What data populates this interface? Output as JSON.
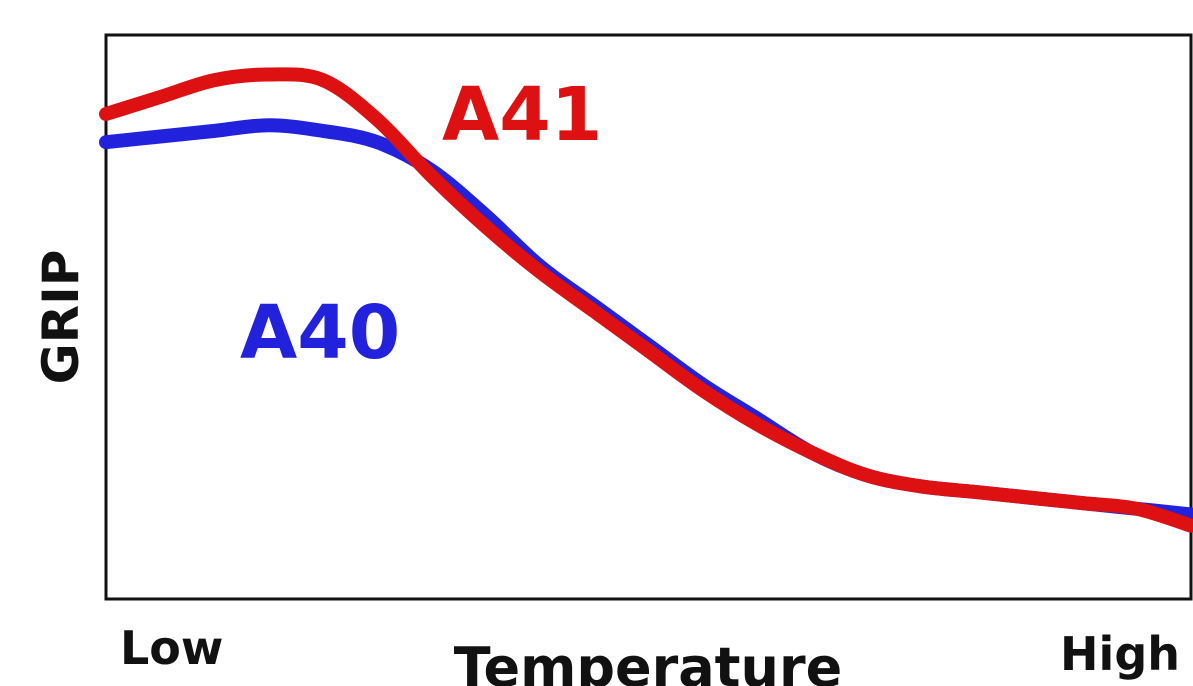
{
  "chart_data": {
    "type": "line",
    "title": "",
    "xlabel": "Temperature",
    "ylabel": "GRIP",
    "x_tick_labels": {
      "low": "Low",
      "high": "High"
    },
    "xlim": [
      0,
      100
    ],
    "ylim": [
      0,
      100
    ],
    "grid": false,
    "legend": "inline labels",
    "x": [
      0,
      5,
      10,
      15,
      20,
      25,
      30,
      35,
      40,
      45,
      50,
      55,
      60,
      65,
      70,
      75,
      80,
      85,
      90,
      95,
      100
    ],
    "series": [
      {
        "name": "A41",
        "color": "#dd1111",
        "values": [
          86,
          89,
          92,
          93,
          92,
          85,
          75,
          66,
          58,
          51,
          44,
          37,
          31,
          26,
          22,
          20,
          19,
          18,
          17,
          16,
          13
        ]
      },
      {
        "name": "A40",
        "color": "#2222dd",
        "values": [
          81,
          82,
          83,
          84,
          83,
          81,
          76,
          68,
          59,
          52,
          45,
          38,
          32,
          26,
          22,
          20,
          19,
          18,
          17,
          16,
          15
        ]
      }
    ]
  }
}
